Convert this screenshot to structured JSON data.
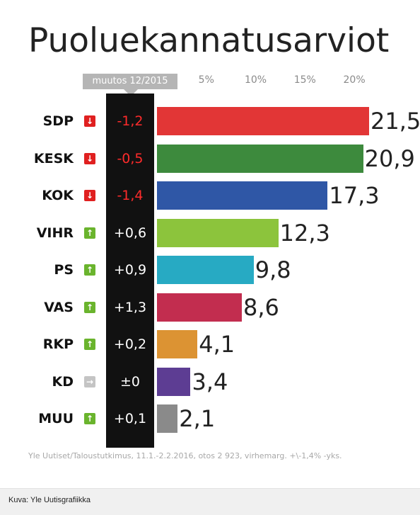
{
  "chart_data": {
    "type": "bar",
    "title": "Puoluekannatusarviot",
    "change_header": "muutos 12/2015",
    "x_ticks": [
      "5%",
      "10%",
      "15%",
      "20%"
    ],
    "xlim": [
      0,
      25
    ],
    "categories": [
      "SDP",
      "KESK",
      "KOK",
      "VIHR",
      "PS",
      "VAS",
      "RKP",
      "KD",
      "MUU"
    ],
    "values": [
      21.5,
      20.9,
      17.3,
      12.3,
      9.8,
      8.6,
      4.1,
      3.4,
      2.1
    ],
    "value_labels": [
      "21,5",
      "20,9",
      "17,3",
      "12,3",
      "9,8",
      "8,6",
      "4,1",
      "3,4",
      "2,1"
    ],
    "changes": [
      "-1,2",
      "-0,5",
      "-1,4",
      "+0,6",
      "+0,9",
      "+1,3",
      "+0,2",
      "±0",
      "+0,1"
    ],
    "change_directions": [
      "down",
      "down",
      "down",
      "up",
      "up",
      "up",
      "up",
      "none",
      "up"
    ],
    "bar_colors": [
      "#e23636",
      "#3d8a3d",
      "#2f57a6",
      "#8cc43c",
      "#27aac3",
      "#c22d4f",
      "#dc9333",
      "#5d3d93",
      "#8a8a8a"
    ],
    "source": "Yle Uutiset/Taloustutkimus, 11.1.-2.2.2016, otos 2 923, virhemarg. +\\-1,4% -yks."
  },
  "caption": "Kuva: Yle Uutisgrafiikka",
  "colors": {
    "down": "#e02020",
    "up": "#6ab42d",
    "none": "#c4c4c4",
    "down_text": "#ff2b2b",
    "up_text": "#ffffff",
    "none_text": "#ffffff"
  },
  "icons": {
    "down": "arrow-down-icon",
    "up": "arrow-up-icon",
    "none": "arrow-right-icon"
  }
}
